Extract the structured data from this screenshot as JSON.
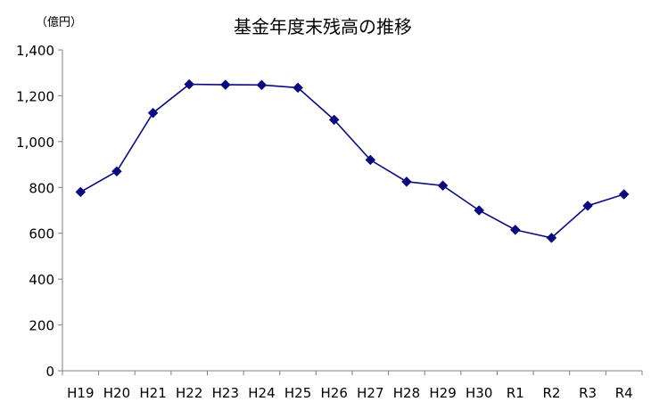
{
  "chart_data": {
    "type": "line",
    "title": "基金年度末残高の推移",
    "unit_label": "（億円）",
    "categories": [
      "H19",
      "H20",
      "H21",
      "H22",
      "H23",
      "H24",
      "H25",
      "H26",
      "H27",
      "H28",
      "H29",
      "H30",
      "R1",
      "R2",
      "R3",
      "R4"
    ],
    "values": [
      780,
      870,
      1125,
      1250,
      1248,
      1247,
      1235,
      1095,
      920,
      825,
      808,
      700,
      615,
      580,
      720,
      770
    ],
    "ylim": [
      0,
      1400
    ],
    "yticks": [
      0,
      200,
      400,
      600,
      800,
      1000,
      1200,
      1400
    ],
    "ytick_labels": [
      "0",
      "200",
      "400",
      "600",
      "800",
      "1,000",
      "1,200",
      "1,400"
    ],
    "grid": false,
    "colors": {
      "series": "#0b0b80",
      "axis": "#808080"
    }
  }
}
